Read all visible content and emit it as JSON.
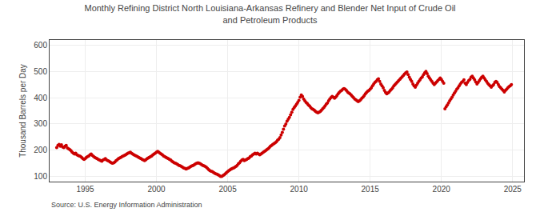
{
  "chart_data": {
    "type": "scatter",
    "title": "Monthly Refining District North Louisiana-Arkansas Refinery and Blender Net Input of Crude Oil\nand Petroleum Products",
    "ylabel": "Thousand Barrels per Day",
    "annotations": [
      "Source: U.S. Energy Information Administration"
    ],
    "color": "#cc0000",
    "marker": "circle",
    "grid": true,
    "xlim": [
      1992.5,
      2025.8
    ],
    "xticks": [
      1995,
      2000,
      2005,
      2010,
      2015,
      2020,
      2025
    ],
    "ylim": [
      80,
      620
    ],
    "yticks": [
      100,
      200,
      300,
      400,
      500,
      600
    ],
    "x": [
      1993,
      1993.0833333333,
      1993.1666666667,
      1993.25,
      1993.3333333333,
      1993.4166666667,
      1993.5,
      1993.5833333333,
      1993.6666666667,
      1993.75,
      1993.8333333333,
      1993.9166666667,
      1994,
      1994.0833333333,
      1994.1666666667,
      1994.25,
      1994.3333333333,
      1994.4166666667,
      1994.5,
      1994.5833333333,
      1994.6666666667,
      1994.75,
      1994.8333333333,
      1994.9166666667,
      1995,
      1995.0833333333,
      1995.1666666667,
      1995.25,
      1995.3333333333,
      1995.4166666667,
      1995.5,
      1995.5833333333,
      1995.6666666667,
      1995.75,
      1995.8333333333,
      1995.9166666667,
      1996,
      1996.0833333333,
      1996.1666666667,
      1996.25,
      1996.3333333333,
      1996.4166666667,
      1996.5,
      1996.5833333333,
      1996.6666666667,
      1996.75,
      1996.8333333333,
      1996.9166666667,
      1997,
      1997.0833333333,
      1997.1666666667,
      1997.25,
      1997.3333333333,
      1997.4166666667,
      1997.5,
      1997.5833333333,
      1997.6666666667,
      1997.75,
      1997.8333333333,
      1997.9166666667,
      1998,
      1998.0833333333,
      1998.1666666667,
      1998.25,
      1998.3333333333,
      1998.4166666667,
      1998.5,
      1998.5833333333,
      1998.6666666667,
      1998.75,
      1998.8333333333,
      1998.9166666667,
      1999,
      1999.0833333333,
      1999.1666666667,
      1999.25,
      1999.3333333333,
      1999.4166666667,
      1999.5,
      1999.5833333333,
      1999.6666666667,
      1999.75,
      1999.8333333333,
      1999.9166666667,
      2000,
      2000.0833333333,
      2000.1666666667,
      2000.25,
      2000.3333333333,
      2000.4166666667,
      2000.5,
      2000.5833333333,
      2000.6666666667,
      2000.75,
      2000.8333333333,
      2000.9166666667,
      2001,
      2001.0833333333,
      2001.1666666667,
      2001.25,
      2001.3333333333,
      2001.4166666667,
      2001.5,
      2001.5833333333,
      2001.6666666667,
      2001.75,
      2001.8333333333,
      2001.9166666667,
      2002,
      2002.0833333333,
      2002.1666666667,
      2002.25,
      2002.3333333333,
      2002.4166666667,
      2002.5,
      2002.5833333333,
      2002.6666666667,
      2002.75,
      2002.8333333333,
      2002.9166666667,
      2003,
      2003.0833333333,
      2003.1666666667,
      2003.25,
      2003.3333333333,
      2003.4166666667,
      2003.5,
      2003.5833333333,
      2003.6666666667,
      2003.75,
      2003.8333333333,
      2003.9166666667,
      2004,
      2004.0833333333,
      2004.1666666667,
      2004.25,
      2004.3333333333,
      2004.4166666667,
      2004.5,
      2004.5833333333,
      2004.6666666667,
      2004.75,
      2004.8333333333,
      2004.9166666667,
      2005,
      2005.0833333333,
      2005.1666666667,
      2005.25,
      2005.3333333333,
      2005.4166666667,
      2005.5,
      2005.5833333333,
      2005.6666666667,
      2005.75,
      2005.8333333333,
      2005.9166666667,
      2006,
      2006.0833333333,
      2006.1666666667,
      2006.25,
      2006.3333333333,
      2006.4166666667,
      2006.5,
      2006.5833333333,
      2006.6666666667,
      2006.75,
      2006.8333333333,
      2006.9166666667,
      2007,
      2007.0833333333,
      2007.1666666667,
      2007.25,
      2007.3333333333,
      2007.4166666667,
      2007.5,
      2007.5833333333,
      2007.6666666667,
      2007.75,
      2007.8333333333,
      2007.9166666667,
      2008,
      2008.0833333333,
      2008.1666666667,
      2008.25,
      2008.3333333333,
      2008.4166666667,
      2008.5,
      2008.5833333333,
      2008.6666666667,
      2008.75,
      2008.8333333333,
      2008.9166666667,
      2009,
      2009.0833333333,
      2009.1666666667,
      2009.25,
      2009.3333333333,
      2009.4166666667,
      2009.5,
      2009.5833333333,
      2009.6666666667,
      2009.75,
      2009.8333333333,
      2009.9166666667,
      2010,
      2010.0833333333,
      2010.1666666667,
      2010.25,
      2010.3333333333,
      2010.4166666667,
      2010.5,
      2010.5833333333,
      2010.6666666667,
      2010.75,
      2010.8333333333,
      2010.9166666667,
      2011,
      2011.0833333333,
      2011.1666666667,
      2011.25,
      2011.3333333333,
      2011.4166666667,
      2011.5,
      2011.5833333333,
      2011.6666666667,
      2011.75,
      2011.8333333333,
      2011.9166666667,
      2012,
      2012.0833333333,
      2012.1666666667,
      2012.25,
      2012.3333333333,
      2012.4166666667,
      2012.5,
      2012.5833333333,
      2012.6666666667,
      2012.75,
      2012.8333333333,
      2012.9166666667,
      2013,
      2013.0833333333,
      2013.1666666667,
      2013.25,
      2013.3333333333,
      2013.4166666667,
      2013.5,
      2013.5833333333,
      2013.6666666667,
      2013.75,
      2013.8333333333,
      2013.9166666667,
      2014,
      2014.0833333333,
      2014.1666666667,
      2014.25,
      2014.3333333333,
      2014.4166666667,
      2014.5,
      2014.5833333333,
      2014.6666666667,
      2014.75,
      2014.8333333333,
      2014.9166666667,
      2015,
      2015.0833333333,
      2015.1666666667,
      2015.25,
      2015.3333333333,
      2015.4166666667,
      2015.5,
      2015.5833333333,
      2015.6666666667,
      2015.75,
      2015.8333333333,
      2015.9166666667,
      2016,
      2016.0833333333,
      2016.1666666667,
      2016.25,
      2016.3333333333,
      2016.4166666667,
      2016.5,
      2016.5833333333,
      2016.6666666667,
      2016.75,
      2016.8333333333,
      2016.9166666667,
      2017,
      2017.0833333333,
      2017.1666666667,
      2017.25,
      2017.3333333333,
      2017.4166666667,
      2017.5,
      2017.5833333333,
      2017.6666666667,
      2017.75,
      2017.8333333333,
      2017.9166666667,
      2018,
      2018.0833333333,
      2018.1666666667,
      2018.25,
      2018.3333333333,
      2018.4166666667,
      2018.5,
      2018.5833333333,
      2018.6666666667,
      2018.75,
      2018.8333333333,
      2018.9166666667,
      2019,
      2019.0833333333,
      2019.1666666667,
      2019.25,
      2019.3333333333,
      2019.4166666667,
      2019.5,
      2019.5833333333,
      2019.6666666667,
      2019.75,
      2019.8333333333,
      2019.9166666667,
      2020,
      2020.0833333333,
      2020.1666666667,
      2020.25,
      2020.3333333333,
      2020.4166666667,
      2020.5,
      2020.5833333333,
      2020.6666666667,
      2020.75,
      2020.8333333333,
      2020.9166666667,
      2021,
      2021.0833333333,
      2021.1666666667,
      2021.25,
      2021.3333333333,
      2021.4166666667,
      2021.5,
      2021.5833333333,
      2021.6666666667,
      2021.75,
      2021.8333333333,
      2021.9166666667,
      2022,
      2022.0833333333,
      2022.1666666667,
      2022.25,
      2022.3333333333,
      2022.4166666667,
      2022.5,
      2022.5833333333,
      2022.6666666667,
      2022.75,
      2022.8333333333,
      2022.9166666667,
      2023,
      2023.0833333333,
      2023.1666666667,
      2023.25,
      2023.3333333333,
      2023.4166666667,
      2023.5,
      2023.5833333333,
      2023.6666666667,
      2023.75,
      2023.8333333333,
      2023.9166666667,
      2024,
      2024.0833333333,
      2024.1666666667,
      2024.25,
      2024.3333333333,
      2024.4166666667,
      2024.5,
      2024.5833333333,
      2024.6666666667,
      2024.75,
      2024.8333333333,
      2024.9166666667
    ],
    "values": [
      210,
      218,
      222,
      215,
      220,
      212,
      210,
      215,
      218,
      208,
      205,
      202,
      198,
      192,
      188,
      185,
      188,
      182,
      180,
      178,
      176,
      172,
      168,
      165,
      168,
      172,
      175,
      178,
      182,
      185,
      180,
      176,
      172,
      170,
      168,
      165,
      162,
      160,
      158,
      162,
      165,
      168,
      162,
      160,
      158,
      155,
      152,
      150,
      152,
      155,
      160,
      163,
      168,
      170,
      172,
      175,
      178,
      180,
      182,
      185,
      188,
      190,
      192,
      188,
      185,
      182,
      180,
      178,
      175,
      172,
      170,
      168,
      165,
      162,
      160,
      163,
      167,
      170,
      172,
      175,
      178,
      182,
      185,
      188,
      192,
      195,
      192,
      188,
      185,
      182,
      178,
      175,
      172,
      170,
      168,
      165,
      162,
      158,
      155,
      152,
      150,
      148,
      145,
      142,
      140,
      138,
      135,
      132,
      130,
      128,
      130,
      132,
      135,
      138,
      140,
      142,
      145,
      148,
      150,
      152,
      150,
      148,
      145,
      142,
      140,
      138,
      135,
      130,
      126,
      122,
      120,
      118,
      115,
      112,
      110,
      108,
      106,
      103,
      100,
      100,
      103,
      106,
      110,
      114,
      118,
      122,
      125,
      128,
      130,
      132,
      135,
      138,
      142,
      148,
      152,
      158,
      162,
      165,
      160,
      162,
      165,
      168,
      170,
      175,
      178,
      182,
      185,
      188,
      185,
      188,
      185,
      182,
      185,
      188,
      192,
      195,
      198,
      202,
      205,
      210,
      215,
      218,
      222,
      225,
      228,
      232,
      238,
      242,
      248,
      258,
      268,
      280,
      292,
      300,
      310,
      318,
      325,
      335,
      345,
      355,
      362,
      368,
      375,
      382,
      390,
      402,
      410,
      405,
      395,
      388,
      382,
      378,
      372,
      368,
      362,
      358,
      355,
      352,
      348,
      345,
      342,
      345,
      348,
      352,
      358,
      362,
      368,
      375,
      380,
      388,
      395,
      400,
      405,
      402,
      398,
      402,
      408,
      415,
      420,
      425,
      428,
      432,
      435,
      432,
      428,
      422,
      418,
      415,
      410,
      405,
      400,
      395,
      392,
      388,
      385,
      388,
      392,
      398,
      402,
      408,
      415,
      420,
      425,
      428,
      432,
      438,
      445,
      452,
      458,
      462,
      468,
      472,
      462,
      452,
      445,
      438,
      428,
      420,
      415,
      418,
      422,
      428,
      432,
      438,
      445,
      450,
      455,
      460,
      465,
      470,
      475,
      480,
      485,
      490,
      495,
      498,
      488,
      478,
      470,
      462,
      452,
      445,
      440,
      448,
      455,
      462,
      468,
      475,
      480,
      488,
      495,
      500,
      492,
      482,
      475,
      468,
      462,
      455,
      450,
      455,
      460,
      465,
      470,
      475,
      470,
      462,
      455,
      358,
      365,
      372,
      380,
      388,
      395,
      402,
      410,
      418,
      425,
      432,
      438,
      445,
      452,
      458,
      462,
      468,
      455,
      450,
      458,
      465,
      470,
      478,
      482,
      475,
      468,
      460,
      452,
      458,
      465,
      472,
      478,
      482,
      475,
      468,
      462,
      455,
      450,
      445,
      440,
      445,
      450,
      458,
      462,
      458,
      450,
      442,
      438,
      432,
      428,
      422,
      428,
      432,
      438,
      442,
      445,
      450
    ]
  }
}
